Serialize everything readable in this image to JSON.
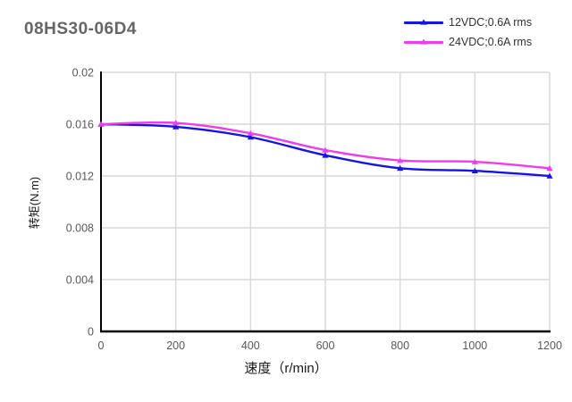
{
  "title": "08HS30-06D4",
  "chart_data": {
    "type": "line",
    "x": [
      0,
      200,
      400,
      600,
      800,
      1000,
      1200
    ],
    "series": [
      {
        "name": "12VDC;0.6A rms",
        "color": "#1414E6",
        "values": [
          0.016,
          0.0158,
          0.015,
          0.0136,
          0.0126,
          0.0124,
          0.012
        ]
      },
      {
        "name": "24VDC;0.6A rms",
        "color": "#EE3CEE",
        "values": [
          0.016,
          0.0161,
          0.0153,
          0.014,
          0.0132,
          0.0131,
          0.0126
        ]
      }
    ],
    "xlabel": "速度（r/min）",
    "ylabel": "转矩(N.m)",
    "xlim": [
      0,
      1200
    ],
    "ylim": [
      0,
      0.02
    ],
    "xticks": [
      0,
      200,
      400,
      600,
      800,
      1000,
      1200
    ],
    "xtick_labels": [
      "0",
      "200",
      "400",
      "600",
      "800",
      "1000",
      "1200"
    ],
    "yticks": [
      0,
      0.004,
      0.008,
      0.012,
      0.016,
      0.02
    ],
    "ytick_labels": [
      "0",
      "0.004",
      "0.008",
      "0.012",
      "0.016",
      "0.02"
    ],
    "grid": true,
    "legend_position": "top-right",
    "colors": {
      "axis": "#000000",
      "grid": "#D9D9D9",
      "tick_text": "#595959",
      "title_text": "#666666"
    }
  }
}
